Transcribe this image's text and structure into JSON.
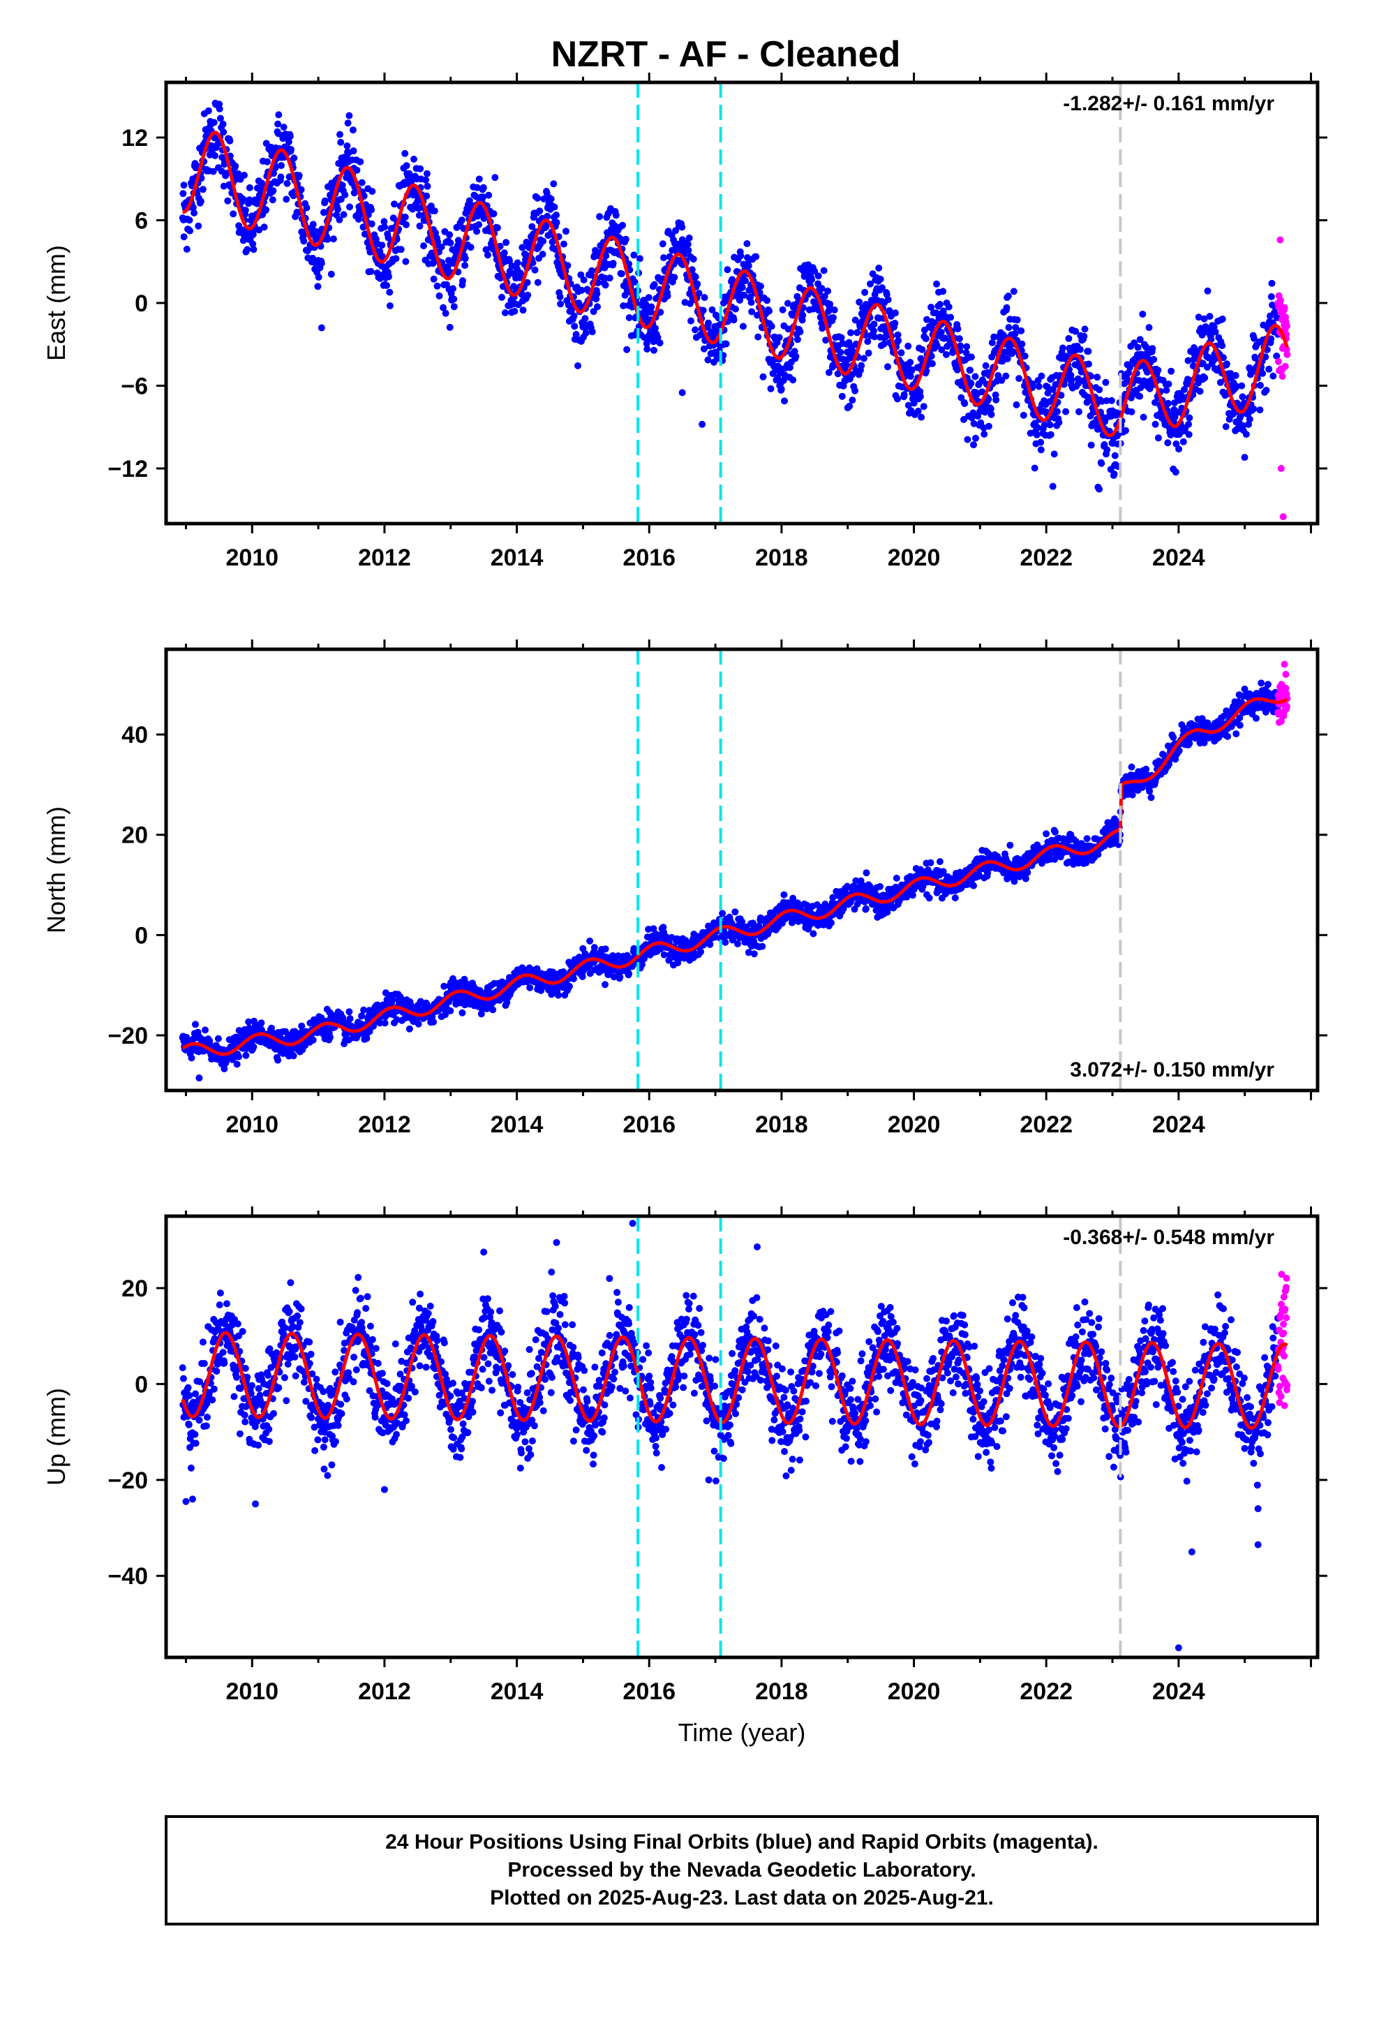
{
  "title": "NZRT  - AF - Cleaned",
  "colors": {
    "final": "#0000ff",
    "rapid": "#ff00ff",
    "model": "#ff0000",
    "step_cyan": "#00e5ee",
    "step_gray": "#c8c8c8",
    "frame": "#000000"
  },
  "footer": {
    "line1": "24 Hour Positions Using Final Orbits (blue) and Rapid Orbits (magenta).",
    "line2": "Processed by the Nevada Geodetic Laboratory.",
    "line3": "Plotted on 2025-Aug-23. Last data on 2025-Aug-21."
  },
  "chart_data": [
    {
      "type": "scatter",
      "name": "east",
      "ylabel": "East (mm)",
      "xlabel": "",
      "rate_label": "-1.282+/- 0.161 mm/yr",
      "rate_position": "top-right",
      "xlim": [
        2008.7,
        2026.1
      ],
      "ylim": [
        -16,
        16
      ],
      "yticks": [
        -12,
        -6,
        0,
        6,
        12
      ],
      "ytick_labels": [
        "−12",
        "−6",
        "0",
        "6",
        "12"
      ],
      "xticks": [
        2010,
        2012,
        2014,
        2016,
        2018,
        2020,
        2022,
        2024
      ],
      "xtick_labels": [
        "2010",
        "2012",
        "2014",
        "2016",
        "2018",
        "2020",
        "2022",
        "2024"
      ],
      "data_start": 2008.95,
      "data_end": 2025.64,
      "rapid_start": 2025.5,
      "steps_cyan": [
        2015.83,
        2017.08
      ],
      "steps_gray": [
        2023.12
      ],
      "model": {
        "trend_x": [
          2008.95,
          2015.0,
          2023.12,
          2025.64
        ],
        "trend_y": [
          9.8,
          2.3,
          -7.2,
          -4.3
        ],
        "amplitude": [
          3.2,
          3.0,
          2.6,
          2.9
        ],
        "phase_peak_fraction": 0.45,
        "offset_at_steps": []
      },
      "noise_sd": 1.4,
      "outliers": [
        {
          "x": 2008.97,
          "y": 4.8
        },
        {
          "x": 2011.05,
          "y": -1.8
        },
        {
          "x": 2016.8,
          "y": -8.8
        },
        {
          "x": 2022.1,
          "y": -13.3
        },
        {
          "x": 2022.8,
          "y": -13.5
        },
        {
          "x": 2025.58,
          "y": -15.5
        },
        {
          "x": 2025.55,
          "y": -12.0
        },
        {
          "x": 2016.5,
          "y": -6.5
        }
      ]
    },
    {
      "type": "scatter",
      "name": "north",
      "ylabel": "North (mm)",
      "xlabel": "",
      "rate_label": "3.072+/- 0.150 mm/yr",
      "rate_position": "bottom-right",
      "xlim": [
        2008.7,
        2026.1
      ],
      "ylim": [
        -31,
        57
      ],
      "yticks": [
        -20,
        0,
        20,
        40
      ],
      "ytick_labels": [
        "−20",
        "0",
        "20",
        "40"
      ],
      "xticks": [
        2010,
        2012,
        2014,
        2016,
        2018,
        2020,
        2022,
        2024
      ],
      "xtick_labels": [
        "2010",
        "2012",
        "2014",
        "2016",
        "2018",
        "2020",
        "2022",
        "2024"
      ],
      "data_start": 2008.95,
      "data_end": 2025.64,
      "rapid_start": 2025.5,
      "steps_cyan": [
        2015.83,
        2017.08
      ],
      "steps_gray": [
        2023.12
      ],
      "model": {
        "trend_x": [
          2008.95,
          2011.0,
          2016.0,
          2020.0,
          2023.12,
          2023.13,
          2023.8,
          2024.3,
          2025.64
        ],
        "trend_y": [
          -23.5,
          -19.5,
          -3.5,
          9.5,
          19.5,
          28.5,
          35.0,
          40.5,
          48.5
        ],
        "amplitude": [
          1.5,
          1.5,
          1.5,
          1.5,
          1.5,
          1.5,
          1.5,
          1.5,
          1.5
        ],
        "phase_peak_fraction": 0.1,
        "offset_at_steps": []
      },
      "noise_sd": 1.3,
      "outliers": [
        {
          "x": 2009.2,
          "y": -28.5
        },
        {
          "x": 2025.6,
          "y": 54.0
        },
        {
          "x": 2025.62,
          "y": 52.0
        }
      ]
    },
    {
      "type": "scatter",
      "name": "up",
      "ylabel": "Up (mm)",
      "xlabel": "Time (year)",
      "rate_label": "-0.368+/- 0.548 mm/yr",
      "rate_position": "top-right",
      "xlim": [
        2008.7,
        2026.1
      ],
      "ylim": [
        -57,
        35
      ],
      "yticks": [
        -40,
        -20,
        0,
        20
      ],
      "ytick_labels": [
        "−40",
        "−20",
        "0",
        "20"
      ],
      "xticks": [
        2010,
        2012,
        2014,
        2016,
        2018,
        2020,
        2022,
        2024
      ],
      "xtick_labels": [
        "2010",
        "2012",
        "2014",
        "2016",
        "2018",
        "2020",
        "2022",
        "2024"
      ],
      "data_start": 2008.95,
      "data_end": 2025.64,
      "rapid_start": 2025.5,
      "steps_cyan": [
        2015.83,
        2017.08
      ],
      "steps_gray": [
        2023.12
      ],
      "model": {
        "trend_x": [
          2008.95,
          2025.64
        ],
        "trend_y": [
          2.0,
          -0.5
        ],
        "amplitude": [
          8.8,
          8.8
        ],
        "phase_peak_fraction": 0.6,
        "offset_at_steps": []
      },
      "noise_sd": 4.5,
      "outliers": [
        {
          "x": 2009.0,
          "y": -24.5
        },
        {
          "x": 2009.1,
          "y": -24.0
        },
        {
          "x": 2010.05,
          "y": -25.0
        },
        {
          "x": 2012.0,
          "y": -22.0
        },
        {
          "x": 2013.5,
          "y": 27.5
        },
        {
          "x": 2014.6,
          "y": 29.5
        },
        {
          "x": 2015.75,
          "y": 33.5
        },
        {
          "x": 2024.0,
          "y": -55.0
        },
        {
          "x": 2024.2,
          "y": -35.0
        },
        {
          "x": 2025.2,
          "y": -33.5
        },
        {
          "x": 2025.2,
          "y": -26.0
        },
        {
          "x": 2023.7,
          "y": 15.0
        },
        {
          "x": 2015.4,
          "y": 22.0
        },
        {
          "x": 2016.9,
          "y": -20.0
        },
        {
          "x": 2025.6,
          "y": -4.5
        }
      ]
    }
  ]
}
